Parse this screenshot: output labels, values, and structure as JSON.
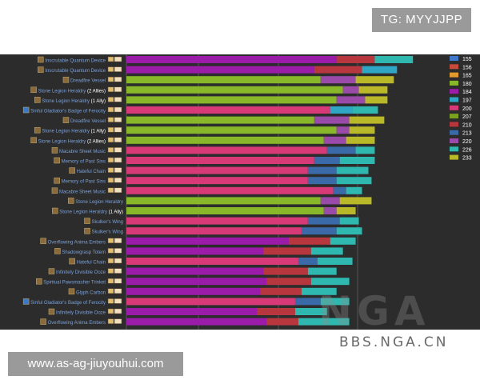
{
  "tag": "TG: MYYJJPP",
  "site": "www.as-ag-jiuyouhui.com",
  "watermark": {
    "brand": "NGA",
    "sub": "BBS.NGA.CN"
  },
  "colors": {
    "155": "#3f78c8",
    "156": "#c84a3a",
    "165": "#e09a2e",
    "180": "#88b82a",
    "184": "#9b1ca8",
    "197": "#2fa6c4",
    "200": "#d83a78",
    "207": "#7aa020",
    "210": "#b8363e",
    "213": "#3a6aa8",
    "220": "#9a4aa8",
    "226": "#2eb8b0",
    "233": "#b8b828"
  },
  "chart_data": {
    "type": "stacked-bar-horizontal",
    "legend": [
      "155",
      "156",
      "165",
      "180",
      "184",
      "197",
      "200",
      "207",
      "210",
      "213",
      "220",
      "226",
      "233"
    ],
    "rows": [
      {
        "label": "Inscrutable Quantum Device",
        "suffix": "",
        "icon": "trinket",
        "base": "184",
        "segs": [
          [
            "184",
            66
          ],
          [
            "210",
            12
          ],
          [
            "226",
            12
          ]
        ]
      },
      {
        "label": "Inscrutable Quantum Device",
        "suffix": "",
        "icon": "trinket",
        "base": "184",
        "segs": [
          [
            "184",
            59
          ],
          [
            "210",
            15
          ],
          [
            "197",
            11
          ]
        ]
      },
      {
        "label": "Dreadfire Vessel",
        "suffix": "",
        "icon": "trinket",
        "base": "180",
        "segs": [
          [
            "180",
            61
          ],
          [
            "220",
            11
          ],
          [
            "233",
            12
          ]
        ]
      },
      {
        "label": "Stone Legion Heraldry",
        "suffix": "(2 Allies)",
        "icon": "trinket",
        "base": "180",
        "segs": [
          [
            "180",
            68
          ],
          [
            "220",
            5
          ],
          [
            "233",
            9
          ]
        ]
      },
      {
        "label": "Stone Legion Heraldry",
        "suffix": "(1 Ally)",
        "icon": "trinket",
        "base": "180",
        "segs": [
          [
            "180",
            66
          ],
          [
            "220",
            9
          ],
          [
            "233",
            7
          ]
        ]
      },
      {
        "label": "Sinful Gladiator's Badge of Ferocity",
        "suffix": "",
        "icon": "badge",
        "base": "200",
        "segs": [
          [
            "200",
            64
          ],
          [
            "197",
            7
          ],
          [
            "226",
            8
          ]
        ]
      },
      {
        "label": "Dreadfire Vessel",
        "suffix": "",
        "icon": "trinket",
        "base": "180",
        "segs": [
          [
            "180",
            59
          ],
          [
            "220",
            11
          ],
          [
            "233",
            11
          ]
        ]
      },
      {
        "label": "Stone Legion Heraldry",
        "suffix": "(1 Ally)",
        "icon": "trinket",
        "base": "180",
        "segs": [
          [
            "180",
            66
          ],
          [
            "220",
            4
          ],
          [
            "233",
            8
          ]
        ]
      },
      {
        "label": "Stone Legion Heraldry",
        "suffix": "(2 Allies)",
        "icon": "trinket",
        "base": "180",
        "segs": [
          [
            "180",
            62
          ],
          [
            "220",
            7
          ],
          [
            "233",
            9
          ]
        ]
      },
      {
        "label": "Macabre Sheet Music",
        "suffix": "",
        "icon": "trinket",
        "base": "200",
        "segs": [
          [
            "200",
            63
          ],
          [
            "213",
            9
          ],
          [
            "226",
            6
          ]
        ]
      },
      {
        "label": "Memory of Past Sins",
        "suffix": "",
        "icon": "trinket",
        "base": "200",
        "segs": [
          [
            "200",
            59
          ],
          [
            "213",
            8
          ],
          [
            "226",
            11
          ]
        ]
      },
      {
        "label": "Hateful Chain",
        "suffix": "",
        "icon": "trinket",
        "base": "200",
        "segs": [
          [
            "200",
            57
          ],
          [
            "213",
            9
          ],
          [
            "226",
            10
          ]
        ]
      },
      {
        "label": "Memory of Past Sins",
        "suffix": "",
        "icon": "trinket",
        "base": "200",
        "segs": [
          [
            "200",
            57
          ],
          [
            "213",
            9
          ],
          [
            "226",
            11
          ]
        ]
      },
      {
        "label": "Macabre Sheet Music",
        "suffix": "",
        "icon": "trinket",
        "base": "200",
        "segs": [
          [
            "200",
            65
          ],
          [
            "213",
            4
          ],
          [
            "226",
            5
          ]
        ]
      },
      {
        "label": "Stone Legion Heraldry",
        "suffix": "",
        "icon": "trinket",
        "base": "180",
        "segs": [
          [
            "180",
            61
          ],
          [
            "220",
            6
          ],
          [
            "233",
            10
          ]
        ]
      },
      {
        "label": "Stone Legion Heraldry",
        "suffix": "(1 Ally)",
        "icon": "trinket",
        "base": "180",
        "segs": [
          [
            "180",
            62
          ],
          [
            "220",
            4
          ],
          [
            "233",
            6
          ]
        ]
      },
      {
        "label": "Skulker's Wing",
        "suffix": "",
        "icon": "trinket",
        "base": "200",
        "segs": [
          [
            "200",
            57
          ],
          [
            "213",
            10
          ],
          [
            "226",
            6
          ]
        ]
      },
      {
        "label": "Skulker's Wing",
        "suffix": "",
        "icon": "trinket",
        "base": "200",
        "segs": [
          [
            "200",
            55
          ],
          [
            "213",
            11
          ],
          [
            "226",
            8
          ]
        ]
      },
      {
        "label": "Overflowing Anima Embers",
        "suffix": "",
        "icon": "trinket",
        "base": "184",
        "segs": [
          [
            "184",
            51
          ],
          [
            "210",
            13
          ],
          [
            "226",
            8
          ]
        ]
      },
      {
        "label": "Shadowgrasp Totem",
        "suffix": "",
        "icon": "trinket",
        "base": "184",
        "segs": [
          [
            "184",
            43
          ],
          [
            "210",
            15
          ],
          [
            "226",
            10
          ]
        ]
      },
      {
        "label": "Hateful Chain",
        "suffix": "",
        "icon": "trinket",
        "base": "200",
        "segs": [
          [
            "200",
            54
          ],
          [
            "213",
            6
          ],
          [
            "226",
            11
          ]
        ]
      },
      {
        "label": "Infinitely Divisible Ooze",
        "suffix": "",
        "icon": "trinket",
        "base": "184",
        "segs": [
          [
            "184",
            43
          ],
          [
            "210",
            14
          ],
          [
            "226",
            9
          ]
        ]
      },
      {
        "label": "Spiritual Pawsmasher Trinket",
        "suffix": "",
        "icon": "trinket",
        "base": "184",
        "segs": [
          [
            "184",
            44
          ],
          [
            "210",
            14
          ],
          [
            "226",
            12
          ]
        ]
      },
      {
        "label": "Glyph Carbon",
        "suffix": "",
        "icon": "trinket",
        "base": "184",
        "segs": [
          [
            "184",
            42
          ],
          [
            "210",
            13
          ],
          [
            "226",
            11
          ]
        ]
      },
      {
        "label": "Sinful Gladiator's Badge of Ferocity",
        "suffix": "",
        "icon": "badge",
        "base": "200",
        "segs": [
          [
            "200",
            53
          ],
          [
            "213",
            8
          ],
          [
            "226",
            9
          ]
        ]
      },
      {
        "label": "Infinitely Divisible Ooze",
        "suffix": "",
        "icon": "trinket",
        "base": "184",
        "segs": [
          [
            "184",
            41
          ],
          [
            "210",
            12
          ],
          [
            "226",
            10
          ]
        ]
      },
      {
        "label": "Overflowing Anima Embers",
        "suffix": "",
        "icon": "trinket",
        "base": "184",
        "segs": [
          [
            "184",
            44
          ],
          [
            "210",
            10
          ],
          [
            "226",
            16
          ]
        ]
      }
    ]
  }
}
